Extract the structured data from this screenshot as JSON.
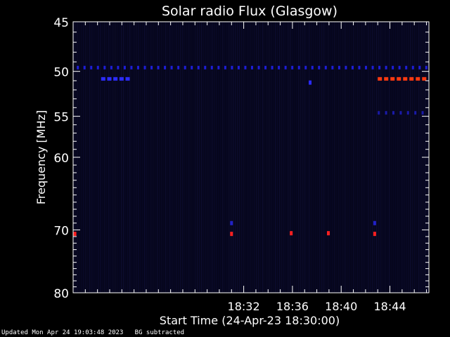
{
  "chart_data": {
    "type": "heatmap",
    "title": "Solar radio Flux (Glasgow)",
    "xlabel": "Start Time (24-Apr-23 18:30:00)",
    "ylabel": "Frequency [MHz]",
    "x_range_minutes": [
      18.0,
      47.2
    ],
    "y_range_mhz": [
      45,
      80
    ],
    "x_ticks": [
      {
        "minute": 32,
        "label": "18:32"
      },
      {
        "minute": 36,
        "label": "18:36"
      },
      {
        "minute": 40,
        "label": "18:40"
      },
      {
        "minute": 44,
        "label": "18:44"
      }
    ],
    "y_ticks": [
      {
        "mhz": 45,
        "label": "45"
      },
      {
        "mhz": 50,
        "label": "50"
      },
      {
        "mhz": 55,
        "label": "55"
      },
      {
        "mhz": 60,
        "label": "60"
      },
      {
        "mhz": 70,
        "label": "70"
      },
      {
        "mhz": 80,
        "label": "80"
      }
    ],
    "background_color": "#06061c",
    "features": [
      {
        "kind": "dashed-band",
        "freq_mhz": 49.6,
        "from_min": 18.3,
        "to_min": 47.0,
        "color": "#1e1ed8",
        "period_min": 0.55
      },
      {
        "kind": "dashed-band",
        "freq_mhz": 50.8,
        "from_min": 20.3,
        "to_min": 22.4,
        "color": "#2c2cff",
        "period_min": 0.5
      },
      {
        "kind": "dashed-band",
        "freq_mhz": 50.8,
        "from_min": 43.0,
        "to_min": 46.8,
        "color": "#ff3a10",
        "period_min": 0.52
      },
      {
        "kind": "dashed-band",
        "freq_mhz": 54.6,
        "from_min": 43.0,
        "to_min": 47.0,
        "color": "#1a1aa8",
        "period_min": 0.6
      },
      {
        "kind": "spot",
        "freq_mhz": 51.2,
        "minute": 37.45,
        "color": "#2a2aff"
      },
      {
        "kind": "spot",
        "freq_mhz": 70.6,
        "minute": 18.15,
        "color": "#ff2020"
      },
      {
        "kind": "spot",
        "freq_mhz": 70.6,
        "minute": 31.0,
        "color": "#ff2020"
      },
      {
        "kind": "spot",
        "freq_mhz": 69.0,
        "minute": 31.0,
        "color": "#2222c8"
      },
      {
        "kind": "spot",
        "freq_mhz": 70.5,
        "minute": 35.9,
        "color": "#ff2020"
      },
      {
        "kind": "spot",
        "freq_mhz": 70.5,
        "minute": 38.95,
        "color": "#ff2020"
      },
      {
        "kind": "spot",
        "freq_mhz": 70.6,
        "minute": 42.75,
        "color": "#ff2020"
      },
      {
        "kind": "spot",
        "freq_mhz": 69.0,
        "minute": 42.75,
        "color": "#2222c8"
      }
    ]
  },
  "footer": {
    "updated": "Updated Mon Apr 24 19:03:48 2023",
    "mode": "BG subtracted"
  }
}
